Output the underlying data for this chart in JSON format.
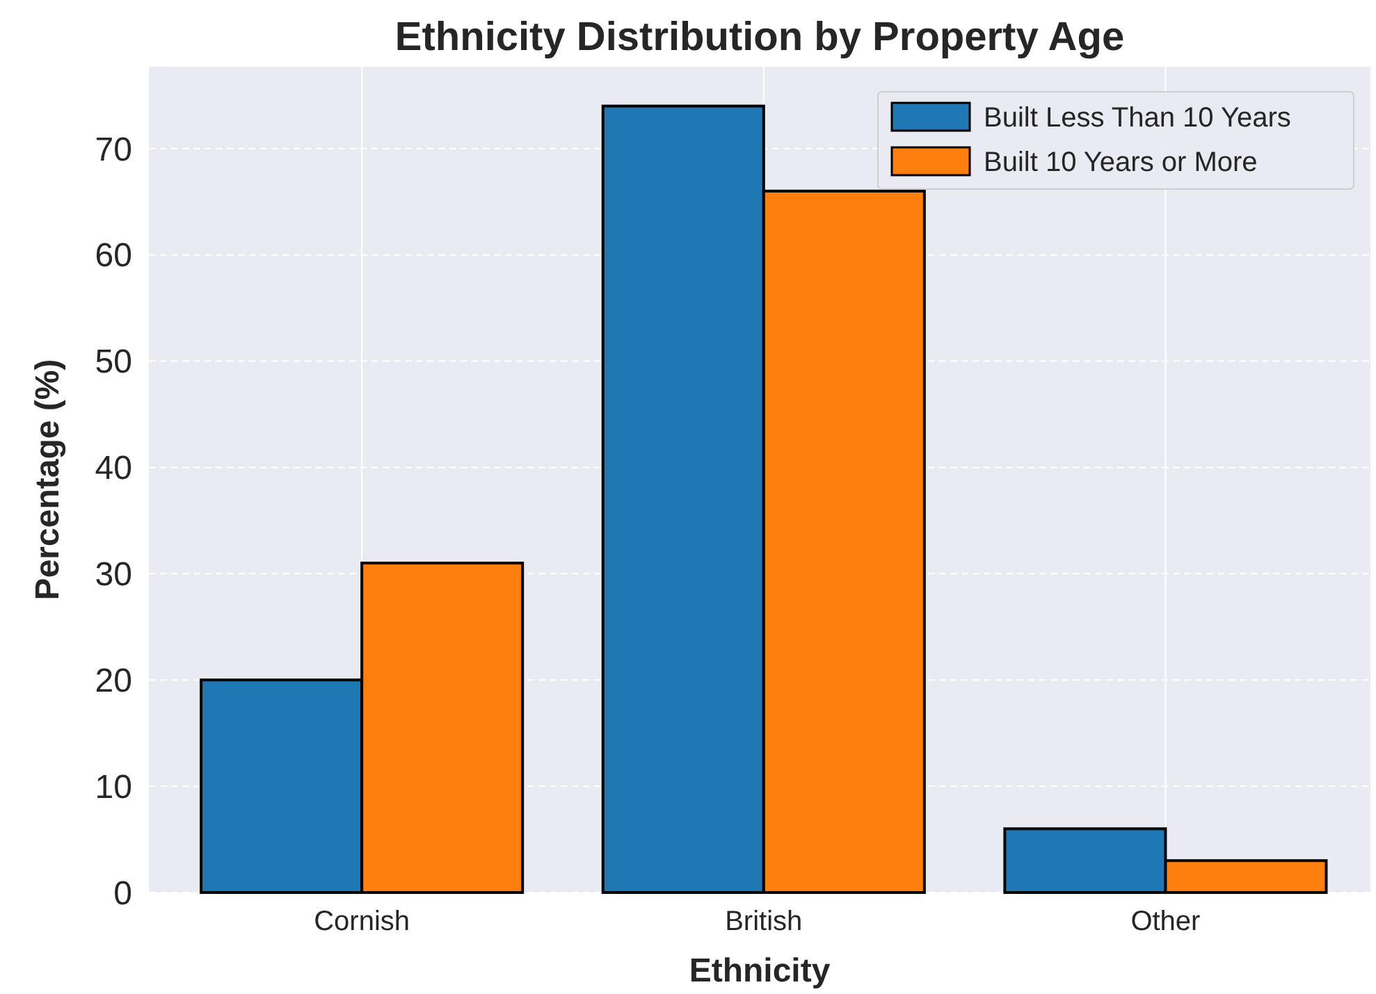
{
  "chart_data": {
    "type": "bar",
    "title": "Ethnicity Distribution by Property Age",
    "xlabel": "Ethnicity",
    "ylabel": "Percentage (%)",
    "categories": [
      "Cornish",
      "British",
      "Other"
    ],
    "series": [
      {
        "name": "Built Less Than 10 Years",
        "color": "#1f77b4",
        "values": [
          20,
          74,
          6
        ]
      },
      {
        "name": "Built 10 Years or More",
        "color": "#ff7f0e",
        "values": [
          31,
          66,
          3
        ]
      }
    ],
    "ylim": [
      0,
      77.7
    ],
    "yticks": [
      0,
      10,
      20,
      30,
      40,
      50,
      60,
      70
    ],
    "grid": true,
    "legend": "top right"
  }
}
